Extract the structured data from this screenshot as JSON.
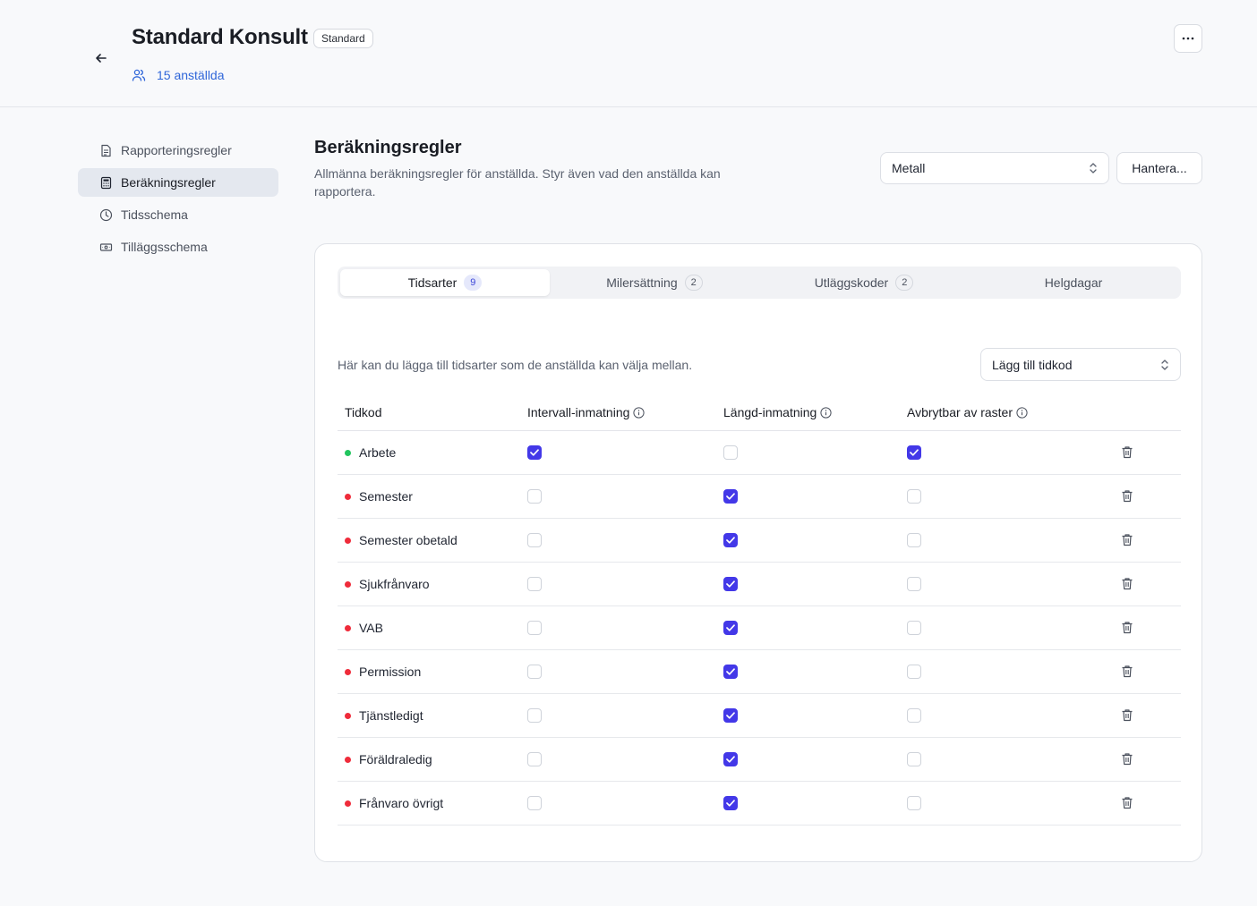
{
  "header": {
    "title": "Standard Konsult",
    "badge": "Standard",
    "employees": "15 anställda"
  },
  "sidebar": {
    "items": [
      {
        "label": "Rapporteringsregler",
        "icon": "document-icon"
      },
      {
        "label": "Beräkningsregler",
        "icon": "calculator-icon"
      },
      {
        "label": "Tidsschema",
        "icon": "clock-icon"
      },
      {
        "label": "Tilläggsschema",
        "icon": "banknote-icon"
      }
    ],
    "active": "Beräkningsregler"
  },
  "section": {
    "title": "Beräkningsregler",
    "description": "Allmänna beräkningsregler för anställda. Styr även vad den anställda kan rapportera.",
    "select_value": "Metall",
    "manage_label": "Hantera..."
  },
  "tabs": [
    {
      "label": "Tidsarter",
      "count": "9"
    },
    {
      "label": "Milersättning",
      "count": "2"
    },
    {
      "label": "Utläggskoder",
      "count": "2"
    },
    {
      "label": "Helgdagar",
      "count": ""
    }
  ],
  "content": {
    "hint": "Här kan du lägga till tidsarter som de anställda kan välja mellan.",
    "add_select": "Lägg till tidkod"
  },
  "table": {
    "columns": [
      "Tidkod",
      "Intervall-inmatning",
      "Längd-inmatning",
      "Avbrytbar av raster"
    ],
    "rows": [
      {
        "name": "Arbete",
        "status": "active",
        "interval": true,
        "length": false,
        "breakable": true
      },
      {
        "name": "Semester",
        "status": "absence",
        "interval": false,
        "length": true,
        "breakable": false
      },
      {
        "name": "Semester obetald",
        "status": "absence",
        "interval": false,
        "length": true,
        "breakable": false
      },
      {
        "name": "Sjukfrånvaro",
        "status": "absence",
        "interval": false,
        "length": true,
        "breakable": false
      },
      {
        "name": "VAB",
        "status": "absence",
        "interval": false,
        "length": true,
        "breakable": false
      },
      {
        "name": "Permission",
        "status": "absence",
        "interval": false,
        "length": true,
        "breakable": false
      },
      {
        "name": "Tjänstledigt",
        "status": "absence",
        "interval": false,
        "length": true,
        "breakable": false
      },
      {
        "name": "Föräldraledig",
        "status": "absence",
        "interval": false,
        "length": true,
        "breakable": false
      },
      {
        "name": "Frånvaro övrigt",
        "status": "absence",
        "interval": false,
        "length": true,
        "breakable": false
      }
    ]
  },
  "colors": {
    "accent": "#4338e8",
    "link": "#2f66d9",
    "status_active": "#22c55e",
    "status_absence": "#ef2b3a"
  }
}
